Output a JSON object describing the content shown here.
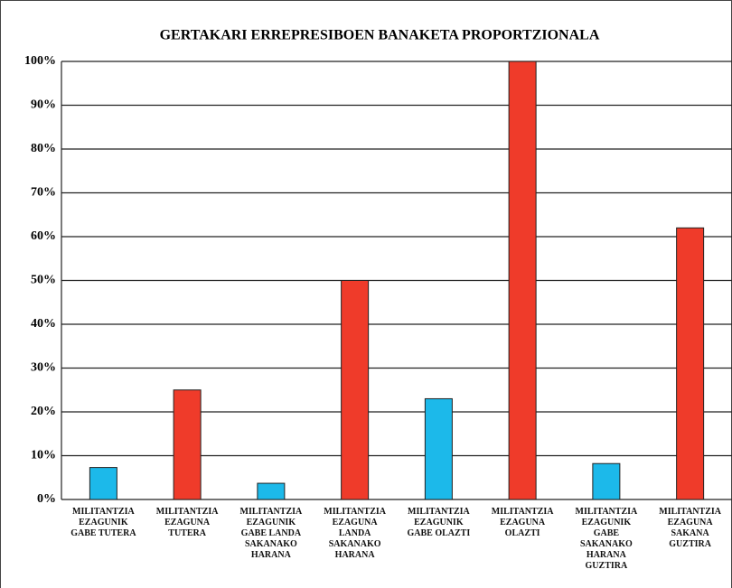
{
  "chart_data": {
    "type": "bar",
    "title": "GERTAKARI ERREPRESIBOEN BANAKETA PROPORTZIONALA",
    "categories": [
      "MILITANTZIA EZAGUNIK GABE TUTERA",
      "MILITANTZIA EZAGUNA TUTERA",
      "MILITANTZIA EZAGUNIK GABE LANDA SAKANAKO HARANA",
      "MILITANTZIA EZAGUNA LANDA SAKANAKO HARANA",
      "MILITANTZIA EZAGUNIK GABE OLAZTI",
      "MILITANTZIA EZAGUNA OLAZTI",
      "MILITANTZIA EZAGUNIK GABE SAKANAKO HARANA GUZTIRA",
      "MILITANTZIA EZAGUNA SAKANA GUZTIRA"
    ],
    "values": [
      7.3,
      25,
      3.7,
      50,
      23,
      100,
      8.2,
      62
    ],
    "colors": [
      "#1cb9ea",
      "#ef3b2a",
      "#1cb9ea",
      "#ef3b2a",
      "#1cb9ea",
      "#ef3b2a",
      "#1cb9ea",
      "#ef3b2a"
    ],
    "ylim": [
      0,
      100
    ],
    "yticks": [
      {
        "value": 0,
        "label": "0%"
      },
      {
        "value": 10,
        "label": "10%"
      },
      {
        "value": 20,
        "label": "20%"
      },
      {
        "value": 30,
        "label": "30%"
      },
      {
        "value": 40,
        "label": "40%"
      },
      {
        "value": 50,
        "label": "50%"
      },
      {
        "value": 60,
        "label": "60%"
      },
      {
        "value": 70,
        "label": "70%"
      },
      {
        "value": 80,
        "label": "80%"
      },
      {
        "value": 90,
        "label": "90%"
      },
      {
        "value": 100,
        "label": "100%"
      }
    ],
    "grid": true
  }
}
